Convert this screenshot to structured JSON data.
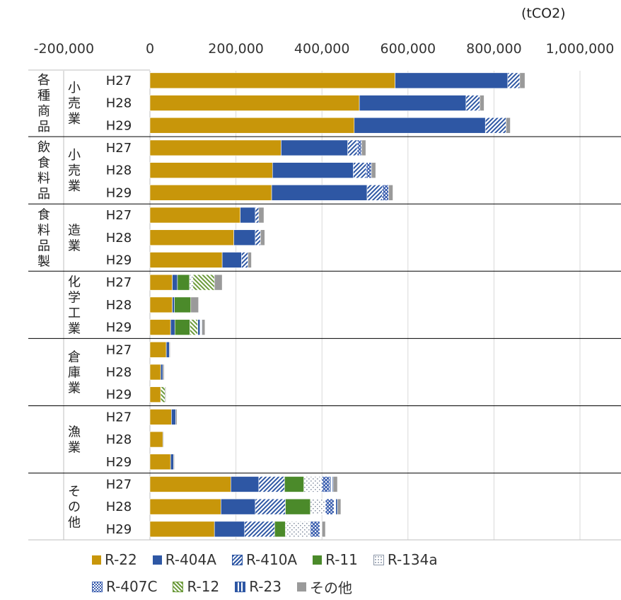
{
  "unit_label": "(tCO2)",
  "colors": {
    "R-22": "#C8960A",
    "R-404A": "#2E57A4",
    "R-410A": "#2E57A4",
    "R-11": "#4B8A2A",
    "R-134a": "#9AA7B8",
    "R-407C": "#3E61B0",
    "R-12": "#6B9A3A",
    "R-23": "#2E57A4",
    "その他": "#9A9A9A"
  },
  "chart_data": {
    "type": "bar",
    "orientation": "horizontal",
    "stacked": true,
    "xlim": [
      -200000,
      1000000
    ],
    "xticks": [
      "-200,000",
      "0",
      "200,000",
      "400,000",
      "600,000",
      "800,000",
      "1,000,000"
    ],
    "xtick_values": [
      -200000,
      0,
      200000,
      400000,
      600000,
      800000,
      1000000
    ],
    "grid": true,
    "legend_position": "bottom",
    "series_names": [
      "R-22",
      "R-404A",
      "R-410A",
      "R-11",
      "R-134a",
      "R-407C",
      "R-12",
      "R-23",
      "その他"
    ],
    "groups": [
      {
        "label_lines": [
          "各種商品",
          "小売業"
        ],
        "rows": [
          {
            "year": "H27",
            "values": [
              570000,
              262000,
              28000,
              0,
              0,
              0,
              0,
              0,
              12000
            ]
          },
          {
            "year": "H28",
            "values": [
              487000,
              248000,
              32000,
              0,
              0,
              0,
              0,
              0,
              10000
            ]
          },
          {
            "year": "H29",
            "values": [
              475000,
              305000,
              48000,
              0,
              0,
              0,
              0,
              0,
              10000
            ]
          }
        ]
      },
      {
        "label_lines": [
          "飲食料品",
          "小売業"
        ],
        "rows": [
          {
            "year": "H27",
            "values": [
              305000,
              155000,
              22000,
              0,
              0,
              10000,
              0,
              0,
              10000
            ]
          },
          {
            "year": "H28",
            "values": [
              285000,
              188000,
              30000,
              0,
              0,
              12000,
              0,
              0,
              10000
            ]
          },
          {
            "year": "H29",
            "values": [
              283000,
              222000,
              35000,
              0,
              0,
              15000,
              0,
              0,
              10000
            ]
          }
        ]
      },
      {
        "label_lines": [
          "食料品製",
          "造業"
        ],
        "rows": [
          {
            "year": "H27",
            "values": [
              210000,
              35000,
              8000,
              0,
              0,
              0,
              0,
              0,
              12000
            ]
          },
          {
            "year": "H28",
            "values": [
              195000,
              50000,
              12000,
              0,
              0,
              0,
              0,
              0,
              10000
            ]
          },
          {
            "year": "H29",
            "values": [
              168000,
              45000,
              15000,
              0,
              0,
              0,
              0,
              0,
              8000
            ]
          }
        ]
      },
      {
        "label_lines": [
          "",
          "化学工業"
        ],
        "rows": [
          {
            "year": "H27",
            "values": [
              52000,
              12000,
              0,
              28000,
              8000,
              0,
              50000,
              0,
              18000
            ]
          },
          {
            "year": "H28",
            "values": [
              52000,
              5000,
              0,
              38000,
              0,
              0,
              0,
              0,
              18000
            ]
          },
          {
            "year": "H29",
            "values": [
              48000,
              10000,
              0,
              35000,
              0,
              0,
              18000,
              10000,
              7000
            ]
          }
        ]
      },
      {
        "label_lines": [
          "",
          "倉庫業"
        ],
        "rows": [
          {
            "year": "H27",
            "values": [
              38000,
              7000,
              0,
              0,
              0,
              0,
              0,
              0,
              2000
            ]
          },
          {
            "year": "H28",
            "values": [
              25000,
              5000,
              0,
              0,
              0,
              0,
              0,
              0,
              3000
            ]
          },
          {
            "year": "H29",
            "values": [
              25000,
              0,
              0,
              0,
              0,
              0,
              10000,
              0,
              2000
            ]
          }
        ]
      },
      {
        "label_lines": [
          "",
          "漁業"
        ],
        "rows": [
          {
            "year": "H27",
            "values": [
              50000,
              10000,
              0,
              0,
              0,
              0,
              0,
              0,
              3000
            ]
          },
          {
            "year": "H28",
            "values": [
              30000,
              0,
              0,
              0,
              0,
              0,
              0,
              0,
              2000
            ]
          },
          {
            "year": "H29",
            "values": [
              48000,
              7000,
              0,
              0,
              0,
              0,
              0,
              0,
              2000
            ]
          }
        ]
      },
      {
        "label_lines": [
          "",
          "その他"
        ],
        "rows": [
          {
            "year": "H27",
            "values": [
              188000,
              65000,
              60000,
              45000,
              42000,
              18000,
              0,
              8000,
              10000
            ]
          },
          {
            "year": "H28",
            "values": [
              165000,
              80000,
              70000,
              58000,
              35000,
              20000,
              0,
              8000,
              8000
            ]
          },
          {
            "year": "H29",
            "values": [
              150000,
              70000,
              70000,
              25000,
              58000,
              22000,
              0,
              5000,
              8000
            ]
          }
        ]
      }
    ]
  }
}
